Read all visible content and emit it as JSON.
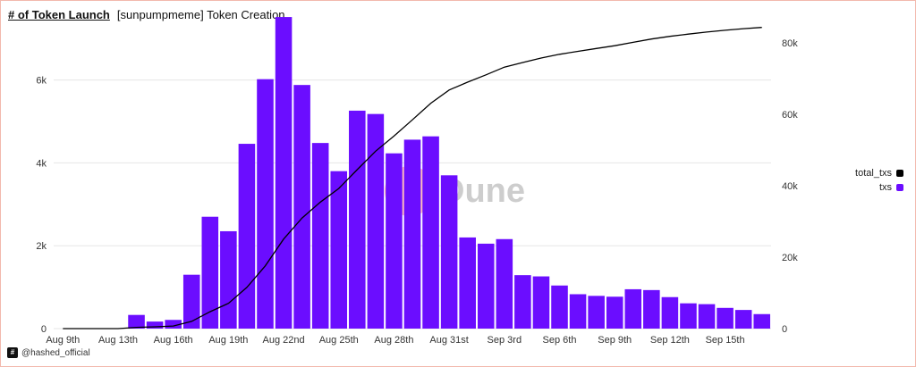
{
  "header": {
    "title": "# of Token Launch",
    "subtitle": "[sunpumpmeme] Token Creation"
  },
  "watermark": "Dune",
  "footer": {
    "logo": "#",
    "handle": "@hashed_official"
  },
  "legend": [
    {
      "label": "total_txs",
      "color": "#000000"
    },
    {
      "label": "txs",
      "color": "#6b0dff"
    }
  ],
  "chart_data": {
    "type": "bar",
    "title": "",
    "xlabel": "",
    "ylabel": "",
    "ylim": [
      0,
      7500
    ],
    "y2lim": [
      0,
      87000
    ],
    "y_ticks": [
      "0",
      "2k",
      "4k",
      "6k"
    ],
    "y2_ticks": [
      "0",
      "20k",
      "40k",
      "60k",
      "80k"
    ],
    "x_tick_labels": [
      "Aug 9th",
      "Aug 13th",
      "Aug 16th",
      "Aug 19th",
      "Aug 22nd",
      "Aug 25th",
      "Aug 28th",
      "Aug 31st",
      "Sep 3rd",
      "Sep 6th",
      "Sep 9th",
      "Sep 12th",
      "Sep 15th"
    ],
    "categories": [
      "Aug 9",
      "Aug 10",
      "Aug 11",
      "Aug 12",
      "Aug 13",
      "Aug 14",
      "Aug 15",
      "Aug 16",
      "Aug 17",
      "Aug 18",
      "Aug 19",
      "Aug 20",
      "Aug 21",
      "Aug 22",
      "Aug 23",
      "Aug 24",
      "Aug 25",
      "Aug 26",
      "Aug 27",
      "Aug 28",
      "Aug 29",
      "Aug 30",
      "Aug 31",
      "Sep 1",
      "Sep 2",
      "Sep 3",
      "Sep 4",
      "Sep 5",
      "Sep 6",
      "Sep 7",
      "Sep 8",
      "Sep 9",
      "Sep 10",
      "Sep 11",
      "Sep 12",
      "Sep 13",
      "Sep 14",
      "Sep 15",
      "Sep 16"
    ],
    "series": [
      {
        "name": "txs",
        "type": "bar",
        "axis": "left",
        "color": "#6b0dff",
        "values": [
          0,
          0,
          0,
          10,
          330,
          170,
          210,
          1300,
          2700,
          2350,
          4460,
          6020,
          7520,
          5880,
          4480,
          3800,
          5260,
          5180,
          4230,
          4560,
          4640,
          3700,
          2200,
          2050,
          2160,
          1290,
          1260,
          1040,
          830,
          790,
          770,
          950,
          930,
          760,
          610,
          590,
          500,
          450,
          350
        ]
      },
      {
        "name": "total_txs",
        "type": "line",
        "axis": "right",
        "color": "#000000",
        "values": [
          0,
          0,
          0,
          10,
          340,
          510,
          720,
          2020,
          4720,
          7070,
          11530,
          17550,
          25070,
          30950,
          35430,
          39230,
          44490,
          49670,
          53900,
          58460,
          63100,
          66800,
          69000,
          71050,
          73210,
          74500,
          75760,
          76800,
          77630,
          78420,
          79190,
          80140,
          81070,
          81830,
          82440,
          83030,
          83530,
          83980,
          84330
        ]
      }
    ],
    "grid": true,
    "legend_position": "right"
  }
}
